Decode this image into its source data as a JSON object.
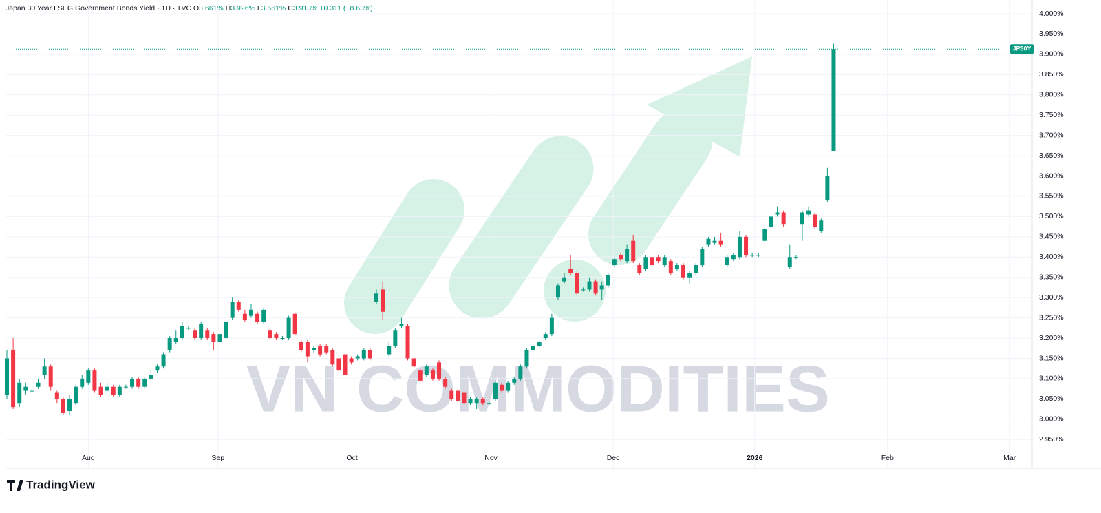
{
  "chart_data": {
    "type": "candlestick",
    "title": "Japan 30 Year LSEG Government Bonds Yield · 1D · TVC",
    "header": {
      "open_label": "O",
      "open": "3.661%",
      "high_label": "H",
      "high": "3.926%",
      "low_label": "L",
      "low": "3.661%",
      "close_label": "C",
      "close": "3.913%",
      "change": "+0.311 (+8.63%)"
    },
    "symbol_label": "JP30Y",
    "watermark": "VN COMMODITIES",
    "branding": "TradingView",
    "up_color": "#089981",
    "down_color": "#f23645",
    "grid": true,
    "open": [
      3.06,
      3.17,
      3.04,
      3.07,
      3.07,
      3.08,
      3.11,
      3.13,
      3.065,
      3.05,
      3.02,
      3.04,
      3.08,
      3.09,
      3.12,
      3.08,
      3.07,
      3.08,
      3.06,
      3.08,
      3.08,
      3.1,
      3.08,
      3.1,
      3.12,
      3.13,
      3.17,
      3.19,
      3.2,
      3.225,
      3.22,
      3.2,
      3.22,
      3.21,
      3.19,
      3.2,
      3.25,
      3.29,
      3.26,
      3.255,
      3.26,
      3.24,
      3.22,
      3.21,
      3.2,
      3.2,
      3.26,
      3.19,
      3.19,
      3.17,
      3.18,
      3.18,
      3.17,
      3.15,
      3.16,
      3.15,
      3.15,
      3.15,
      3.17,
      3.29,
      3.32,
      3.16,
      3.18,
      3.23,
      3.23,
      3.15,
      3.12,
      3.11,
      3.12,
      3.14,
      3.1,
      3.07,
      3.07,
      3.065,
      3.04,
      3.04,
      3.05,
      3.04,
      3.05,
      3.085,
      3.07,
      3.09,
      3.1,
      3.13,
      3.17,
      3.18,
      3.2,
      3.21,
      3.3,
      3.34,
      3.37,
      3.36,
      3.32,
      3.32,
      3.34,
      3.32,
      3.33,
      3.38,
      3.405,
      3.39,
      3.44,
      3.38,
      3.37,
      3.4,
      3.4,
      3.38,
      3.39,
      3.37,
      3.38,
      3.35,
      3.36,
      3.38,
      3.43,
      3.435,
      3.44,
      3.38,
      3.395,
      3.4,
      3.45,
      3.405,
      3.405,
      3.44,
      3.475,
      3.505,
      3.51,
      3.375,
      3.4,
      3.48,
      3.505,
      3.505,
      3.465,
      3.54,
      3.661
    ],
    "high": [
      3.17,
      3.2,
      3.1,
      3.09,
      3.075,
      3.1,
      3.15,
      3.135,
      3.07,
      3.055,
      3.06,
      3.085,
      3.11,
      3.125,
      3.125,
      3.09,
      3.09,
      3.085,
      3.085,
      3.085,
      3.105,
      3.105,
      3.105,
      3.12,
      3.135,
      3.165,
      3.205,
      3.22,
      3.24,
      3.23,
      3.225,
      3.24,
      3.225,
      3.215,
      3.215,
      3.245,
      3.3,
      3.295,
      3.27,
      3.285,
      3.265,
      3.275,
      3.225,
      3.215,
      3.205,
      3.255,
      3.265,
      3.195,
      3.195,
      3.18,
      3.185,
      3.185,
      3.175,
      3.155,
      3.165,
      3.155,
      3.16,
      3.175,
      3.175,
      3.32,
      3.34,
      3.19,
      3.225,
      3.25,
      3.235,
      3.155,
      3.125,
      3.135,
      3.125,
      3.145,
      3.105,
      3.075,
      3.075,
      3.07,
      3.055,
      3.055,
      3.055,
      3.045,
      3.095,
      3.09,
      3.095,
      3.105,
      3.135,
      3.175,
      3.185,
      3.195,
      3.215,
      3.26,
      3.335,
      3.36,
      3.405,
      3.365,
      3.325,
      3.35,
      3.345,
      3.34,
      3.36,
      3.4,
      3.41,
      3.43,
      3.455,
      3.385,
      3.405,
      3.405,
      3.405,
      3.405,
      3.395,
      3.385,
      3.385,
      3.365,
      3.385,
      3.425,
      3.45,
      3.45,
      3.46,
      3.405,
      3.41,
      3.465,
      3.455,
      3.41,
      3.41,
      3.475,
      3.505,
      3.525,
      3.515,
      3.43,
      3.405,
      3.515,
      3.525,
      3.51,
      3.495,
      3.62,
      3.926
    ],
    "low": [
      3.05,
      3.025,
      3.03,
      3.06,
      3.065,
      3.075,
      3.1,
      3.07,
      3.04,
      3.01,
      3.01,
      3.035,
      3.075,
      3.085,
      3.065,
      3.055,
      3.065,
      3.055,
      3.055,
      3.075,
      3.075,
      3.075,
      3.075,
      3.095,
      3.115,
      3.125,
      3.165,
      3.185,
      3.195,
      3.22,
      3.195,
      3.195,
      3.195,
      3.17,
      3.185,
      3.195,
      3.245,
      3.265,
      3.24,
      3.25,
      3.235,
      3.235,
      3.195,
      3.195,
      3.195,
      3.195,
      3.205,
      3.165,
      3.14,
      3.165,
      3.155,
      3.16,
      3.13,
      3.115,
      3.09,
      3.135,
      3.145,
      3.145,
      3.145,
      3.285,
      3.245,
      3.155,
      3.175,
      3.225,
      3.145,
      3.125,
      3.09,
      3.105,
      3.095,
      3.095,
      3.075,
      3.045,
      3.04,
      3.035,
      3.035,
      3.025,
      3.035,
      3.035,
      3.045,
      3.065,
      3.065,
      3.085,
      3.095,
      3.125,
      3.165,
      3.175,
      3.195,
      3.205,
      3.295,
      3.335,
      3.355,
      3.305,
      3.315,
      3.315,
      3.305,
      3.295,
      3.325,
      3.375,
      3.39,
      3.385,
      3.385,
      3.355,
      3.365,
      3.375,
      3.385,
      3.375,
      3.355,
      3.365,
      3.345,
      3.335,
      3.355,
      3.375,
      3.425,
      3.43,
      3.425,
      3.375,
      3.39,
      3.395,
      3.4,
      3.4,
      3.4,
      3.435,
      3.47,
      3.5,
      3.475,
      3.37,
      3.395,
      3.44,
      3.5,
      3.47,
      3.46,
      3.535,
      3.661
    ],
    "close": [
      3.15,
      3.03,
      3.09,
      3.08,
      3.07,
      3.09,
      3.13,
      3.08,
      3.05,
      3.015,
      3.05,
      3.08,
      3.1,
      3.12,
      3.07,
      3.06,
      3.08,
      3.06,
      3.08,
      3.08,
      3.1,
      3.08,
      3.1,
      3.11,
      3.13,
      3.16,
      3.2,
      3.2,
      3.23,
      3.225,
      3.2,
      3.235,
      3.2,
      3.19,
      3.21,
      3.24,
      3.29,
      3.27,
      3.245,
      3.27,
      3.24,
      3.27,
      3.2,
      3.2,
      3.2,
      3.25,
      3.21,
      3.17,
      3.155,
      3.175,
      3.16,
      3.165,
      3.135,
      3.12,
      3.11,
      3.14,
      3.155,
      3.17,
      3.15,
      3.31,
      3.265,
      3.18,
      3.22,
      3.235,
      3.15,
      3.13,
      3.095,
      3.13,
      3.1,
      3.1,
      3.08,
      3.05,
      3.045,
      3.04,
      3.05,
      3.05,
      3.04,
      3.04,
      3.09,
      3.07,
      3.09,
      3.1,
      3.13,
      3.17,
      3.18,
      3.19,
      3.21,
      3.25,
      3.33,
      3.35,
      3.36,
      3.31,
      3.32,
      3.34,
      3.31,
      3.33,
      3.355,
      3.395,
      3.395,
      3.42,
      3.39,
      3.36,
      3.4,
      3.38,
      3.39,
      3.4,
      3.36,
      3.38,
      3.35,
      3.36,
      3.38,
      3.42,
      3.445,
      3.44,
      3.43,
      3.4,
      3.405,
      3.45,
      3.405,
      3.405,
      3.405,
      3.47,
      3.5,
      3.51,
      3.48,
      3.4,
      3.4,
      3.51,
      3.515,
      3.475,
      3.49,
      3.6,
      3.913
    ],
    "ylim": [
      2.93,
      4.034
    ],
    "yticks": [
      {
        "value": 2.95,
        "label": "2.950%"
      },
      {
        "value": 3.0,
        "label": "3.000%"
      },
      {
        "value": 3.05,
        "label": "3.050%"
      },
      {
        "value": 3.1,
        "label": "3.100%"
      },
      {
        "value": 3.15,
        "label": "3.150%"
      },
      {
        "value": 3.2,
        "label": "3.200%"
      },
      {
        "value": 3.25,
        "label": "3.250%"
      },
      {
        "value": 3.3,
        "label": "3.300%"
      },
      {
        "value": 3.35,
        "label": "3.350%"
      },
      {
        "value": 3.4,
        "label": "3.400%"
      },
      {
        "value": 3.45,
        "label": "3.450%"
      },
      {
        "value": 3.5,
        "label": "3.500%"
      },
      {
        "value": 3.55,
        "label": "3.550%"
      },
      {
        "value": 3.6,
        "label": "3.600%"
      },
      {
        "value": 3.65,
        "label": "3.650%"
      },
      {
        "value": 3.7,
        "label": "3.700%"
      },
      {
        "value": 3.75,
        "label": "3.750%"
      },
      {
        "value": 3.8,
        "label": "3.800%"
      },
      {
        "value": 3.85,
        "label": "3.850%"
      },
      {
        "value": 3.9,
        "label": "3.900%"
      },
      {
        "value": 3.95,
        "label": "3.950%"
      },
      {
        "value": 4.0,
        "label": "4.000%"
      }
    ],
    "xlim": [
      -0.22,
      163.7
    ],
    "xticks": [
      {
        "value": 13.0,
        "label": "Aug"
      },
      {
        "value": 33.7,
        "label": "Sep"
      },
      {
        "value": 55.1,
        "label": "Oct"
      },
      {
        "value": 77.3,
        "label": "Nov"
      },
      {
        "value": 96.8,
        "label": "Dec"
      },
      {
        "value": 119.4,
        "label": "2026"
      },
      {
        "value": 140.6,
        "label": "Feb"
      },
      {
        "value": 160.1,
        "label": "Mar"
      }
    ]
  }
}
